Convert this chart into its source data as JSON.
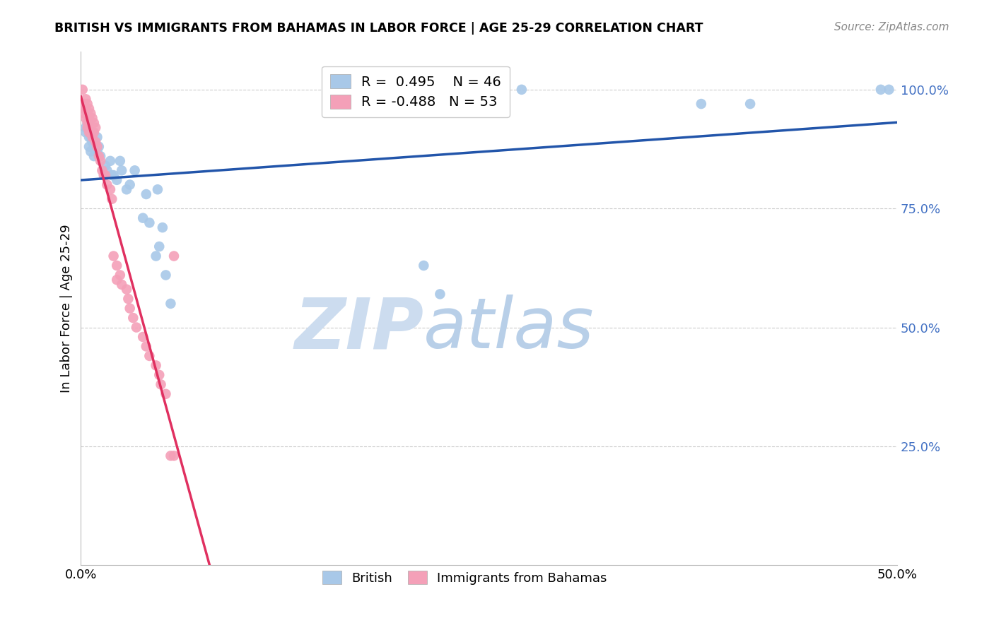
{
  "title": "BRITISH VS IMMIGRANTS FROM BAHAMAS IN LABOR FORCE | AGE 25-29 CORRELATION CHART",
  "source": "Source: ZipAtlas.com",
  "ylabel": "In Labor Force | Age 25-29",
  "xlim": [
    0.0,
    0.5
  ],
  "ylim": [
    0.0,
    1.08
  ],
  "british_R": 0.495,
  "british_N": 46,
  "bahamas_R": -0.488,
  "bahamas_N": 53,
  "british_color": "#a8c8e8",
  "bahamas_color": "#f4a0b8",
  "british_line_color": "#2255aa",
  "bahamas_line_color": "#e03060",
  "bahamas_line_dashed_color": "#d0a0b0",
  "watermark_zip_color": "#ccdcf0",
  "watermark_atlas_color": "#b8cce4",
  "british_x": [
    0.003,
    0.003,
    0.004,
    0.005,
    0.005,
    0.006,
    0.006,
    0.007,
    0.007,
    0.008,
    0.008,
    0.009,
    0.01,
    0.01,
    0.011,
    0.012,
    0.015,
    0.016,
    0.018,
    0.019,
    0.02,
    0.022,
    0.024,
    0.025,
    0.028,
    0.03,
    0.033,
    0.038,
    0.04,
    0.042,
    0.046,
    0.047,
    0.048,
    0.05,
    0.052,
    0.055,
    0.19,
    0.21,
    0.22,
    0.24,
    0.25,
    0.27,
    0.38,
    0.41,
    0.49,
    0.495
  ],
  "british_y": [
    0.92,
    0.91,
    0.93,
    0.88,
    0.9,
    0.87,
    0.9,
    0.89,
    0.91,
    0.86,
    0.88,
    0.87,
    0.9,
    0.87,
    0.88,
    0.86,
    0.84,
    0.83,
    0.85,
    0.82,
    0.82,
    0.81,
    0.85,
    0.83,
    0.79,
    0.8,
    0.83,
    0.73,
    0.78,
    0.72,
    0.65,
    0.79,
    0.67,
    0.71,
    0.61,
    0.55,
    0.55,
    0.63,
    0.57,
    1.0,
    1.0,
    1.0,
    0.97,
    0.97,
    1.0,
    1.0
  ],
  "bahamas_x": [
    0.001,
    0.001,
    0.002,
    0.002,
    0.003,
    0.003,
    0.003,
    0.004,
    0.004,
    0.004,
    0.005,
    0.005,
    0.005,
    0.006,
    0.006,
    0.007,
    0.007,
    0.008,
    0.008,
    0.009,
    0.009,
    0.01,
    0.011,
    0.012,
    0.013,
    0.015,
    0.016,
    0.018,
    0.019,
    0.02,
    0.022,
    0.024,
    0.025,
    0.028,
    0.029,
    0.03,
    0.032,
    0.034,
    0.038,
    0.042,
    0.046,
    0.049,
    0.052,
    0.055,
    0.002,
    0.004,
    0.006,
    0.014,
    0.04,
    0.048,
    0.057,
    0.057,
    0.022
  ],
  "bahamas_y": [
    1.0,
    0.97,
    0.97,
    0.95,
    0.98,
    0.96,
    0.94,
    0.97,
    0.95,
    0.92,
    0.96,
    0.94,
    0.91,
    0.95,
    0.92,
    0.94,
    0.9,
    0.93,
    0.91,
    0.92,
    0.89,
    0.88,
    0.86,
    0.85,
    0.83,
    0.82,
    0.8,
    0.79,
    0.77,
    0.65,
    0.63,
    0.61,
    0.59,
    0.58,
    0.56,
    0.54,
    0.52,
    0.5,
    0.48,
    0.44,
    0.42,
    0.38,
    0.36,
    0.23,
    0.96,
    0.93,
    0.91,
    0.82,
    0.46,
    0.4,
    0.23,
    0.65,
    0.6
  ]
}
